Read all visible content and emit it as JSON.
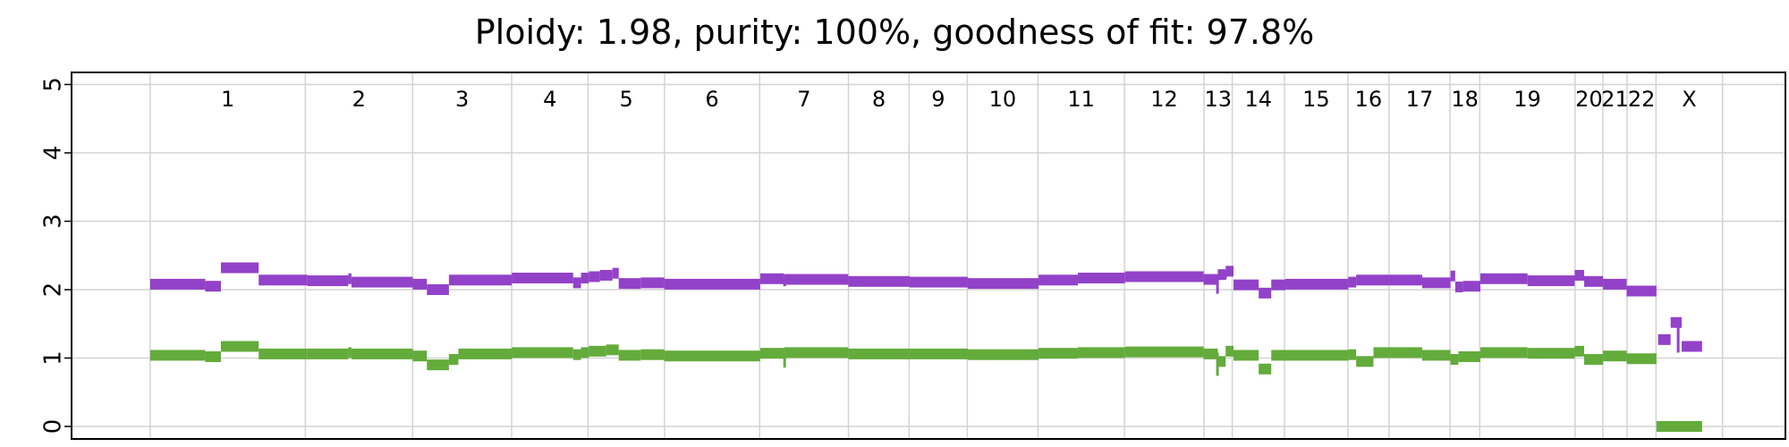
{
  "chart_data": {
    "type": "line",
    "title": "Ploidy: 1.98, purity: 100%, goodness of fit: 97.8%",
    "xlabel": "",
    "ylabel": "",
    "ylim": [
      0,
      5
    ],
    "yticks": [
      0,
      1,
      2,
      3,
      4,
      5
    ],
    "xlim": [
      -0.05,
      1.04
    ],
    "grid": true,
    "chromosomes": [
      {
        "label": "1",
        "start": 0.0,
        "end": 0.0987
      },
      {
        "label": "2",
        "start": 0.0987,
        "end": 0.1669
      },
      {
        "label": "3",
        "start": 0.1669,
        "end": 0.2299
      },
      {
        "label": "4",
        "start": 0.2299,
        "end": 0.2785
      },
      {
        "label": "5",
        "start": 0.2785,
        "end": 0.3271
      },
      {
        "label": "6",
        "start": 0.3271,
        "end": 0.3876
      },
      {
        "label": "7",
        "start": 0.3876,
        "end": 0.4441
      },
      {
        "label": "8",
        "start": 0.4441,
        "end": 0.4827
      },
      {
        "label": "9",
        "start": 0.4827,
        "end": 0.5197
      },
      {
        "label": "10",
        "start": 0.5197,
        "end": 0.5646
      },
      {
        "label": "11",
        "start": 0.5646,
        "end": 0.6196
      },
      {
        "label": "12",
        "start": 0.6196,
        "end": 0.6702
      },
      {
        "label": "13",
        "start": 0.6702,
        "end": 0.6882
      },
      {
        "label": "14",
        "start": 0.6882,
        "end": 0.7214
      },
      {
        "label": "15",
        "start": 0.7214,
        "end": 0.7617
      },
      {
        "label": "16",
        "start": 0.7617,
        "end": 0.7879
      },
      {
        "label": "17",
        "start": 0.7879,
        "end": 0.8267
      },
      {
        "label": "18",
        "start": 0.8267,
        "end": 0.8456
      },
      {
        "label": "19",
        "start": 0.8456,
        "end": 0.9062
      },
      {
        "label": "20",
        "start": 0.9062,
        "end": 0.9239
      },
      {
        "label": "21",
        "start": 0.9239,
        "end": 0.9393
      },
      {
        "label": "22",
        "start": 0.9393,
        "end": 0.9577
      },
      {
        "label": "X",
        "start": 0.9577,
        "end": 1.0
      }
    ],
    "series": [
      {
        "color": "#9242c8",
        "segments": [
          [
            0.0,
            0.035,
            2.08
          ],
          [
            0.035,
            0.045,
            2.05
          ],
          [
            0.045,
            0.069,
            2.32
          ],
          [
            0.069,
            0.1,
            2.14
          ],
          [
            0.1,
            0.126,
            2.13
          ],
          [
            0.126,
            0.128,
            2.16
          ],
          [
            0.128,
            0.167,
            2.11
          ],
          [
            0.167,
            0.176,
            2.08
          ],
          [
            0.176,
            0.19,
            2.0
          ],
          [
            0.19,
            0.23,
            2.14
          ],
          [
            0.23,
            0.269,
            2.17
          ],
          [
            0.269,
            0.274,
            2.1
          ],
          [
            0.274,
            0.279,
            2.17
          ],
          [
            0.279,
            0.286,
            2.19
          ],
          [
            0.286,
            0.294,
            2.21
          ],
          [
            0.294,
            0.298,
            2.24
          ],
          [
            0.298,
            0.312,
            2.09
          ],
          [
            0.312,
            0.327,
            2.1
          ],
          [
            0.327,
            0.388,
            2.08
          ],
          [
            0.388,
            0.403,
            2.16
          ],
          [
            0.403,
            0.444,
            2.15
          ],
          [
            0.444,
            0.483,
            2.12
          ],
          [
            0.483,
            0.52,
            2.11
          ],
          [
            0.52,
            0.565,
            2.09
          ],
          [
            0.565,
            0.59,
            2.14
          ],
          [
            0.59,
            0.62,
            2.17
          ],
          [
            0.62,
            0.67,
            2.19
          ],
          [
            0.67,
            0.679,
            2.15
          ],
          [
            0.679,
            0.684,
            2.22
          ],
          [
            0.684,
            0.689,
            2.27
          ],
          [
            0.689,
            0.705,
            2.07
          ],
          [
            0.705,
            0.713,
            1.95
          ],
          [
            0.713,
            0.722,
            2.07
          ],
          [
            0.722,
            0.762,
            2.08
          ],
          [
            0.762,
            0.767,
            2.11
          ],
          [
            0.767,
            0.788,
            2.14
          ],
          [
            0.788,
            0.809,
            2.14
          ],
          [
            0.809,
            0.827,
            2.1
          ],
          [
            0.827,
            0.83,
            2.2
          ],
          [
            0.83,
            0.835,
            2.04
          ],
          [
            0.835,
            0.846,
            2.05
          ],
          [
            0.846,
            0.876,
            2.16
          ],
          [
            0.876,
            0.906,
            2.13
          ],
          [
            0.906,
            0.912,
            2.21
          ],
          [
            0.912,
            0.924,
            2.12
          ],
          [
            0.924,
            0.939,
            2.08
          ],
          [
            0.939,
            0.958,
            1.98
          ],
          [
            0.959,
            0.967,
            1.27
          ],
          [
            0.967,
            0.974,
            1.52
          ],
          [
            0.974,
            0.987,
            1.17
          ]
        ]
      },
      {
        "color": "#63ab3b",
        "segments": [
          [
            0.0,
            0.035,
            1.04
          ],
          [
            0.035,
            0.045,
            1.02
          ],
          [
            0.045,
            0.069,
            1.17
          ],
          [
            0.069,
            0.1,
            1.06
          ],
          [
            0.1,
            0.126,
            1.06
          ],
          [
            0.126,
            0.128,
            1.08
          ],
          [
            0.128,
            0.167,
            1.06
          ],
          [
            0.167,
            0.176,
            1.03
          ],
          [
            0.176,
            0.19,
            0.9
          ],
          [
            0.19,
            0.196,
            0.98
          ],
          [
            0.196,
            0.23,
            1.06
          ],
          [
            0.23,
            0.269,
            1.08
          ],
          [
            0.269,
            0.274,
            1.05
          ],
          [
            0.274,
            0.279,
            1.08
          ],
          [
            0.279,
            0.29,
            1.1
          ],
          [
            0.29,
            0.298,
            1.12
          ],
          [
            0.298,
            0.312,
            1.04
          ],
          [
            0.312,
            0.327,
            1.05
          ],
          [
            0.327,
            0.388,
            1.03
          ],
          [
            0.388,
            0.403,
            1.07
          ],
          [
            0.403,
            0.444,
            1.08
          ],
          [
            0.444,
            0.483,
            1.06
          ],
          [
            0.483,
            0.52,
            1.06
          ],
          [
            0.52,
            0.565,
            1.05
          ],
          [
            0.565,
            0.59,
            1.07
          ],
          [
            0.59,
            0.62,
            1.08
          ],
          [
            0.62,
            0.67,
            1.09
          ],
          [
            0.67,
            0.679,
            1.06
          ],
          [
            0.679,
            0.684,
            0.95
          ],
          [
            0.684,
            0.689,
            1.1
          ],
          [
            0.689,
            0.705,
            1.04
          ],
          [
            0.705,
            0.713,
            0.84
          ],
          [
            0.713,
            0.722,
            1.04
          ],
          [
            0.722,
            0.762,
            1.04
          ],
          [
            0.762,
            0.767,
            1.05
          ],
          [
            0.767,
            0.778,
            0.95
          ],
          [
            0.778,
            0.788,
            1.08
          ],
          [
            0.788,
            0.809,
            1.08
          ],
          [
            0.809,
            0.827,
            1.04
          ],
          [
            0.827,
            0.832,
            0.98
          ],
          [
            0.832,
            0.846,
            1.02
          ],
          [
            0.846,
            0.876,
            1.08
          ],
          [
            0.876,
            0.906,
            1.07
          ],
          [
            0.906,
            0.912,
            1.1
          ],
          [
            0.912,
            0.924,
            0.98
          ],
          [
            0.924,
            0.939,
            1.03
          ],
          [
            0.939,
            0.958,
            0.99
          ],
          [
            0.958,
            0.987,
            0.0
          ]
        ]
      }
    ],
    "spikes": [
      {
        "x": 0.4035,
        "y0": 2.05,
        "y1": 2.17,
        "color": "#9242c8"
      },
      {
        "x": 0.4035,
        "y0": 0.86,
        "y1": 1.08,
        "color": "#63ab3b"
      },
      {
        "x": 0.6788,
        "y0": 1.94,
        "y1": 2.22,
        "color": "#9242c8"
      },
      {
        "x": 0.6788,
        "y0": 0.74,
        "y1": 1.08,
        "color": "#63ab3b"
      },
      {
        "x": 0.6838,
        "y0": 2.15,
        "y1": 2.28,
        "color": "#9242c8"
      },
      {
        "x": 0.9718,
        "y0": 1.08,
        "y1": 1.58,
        "color": "#9242c8"
      }
    ]
  }
}
